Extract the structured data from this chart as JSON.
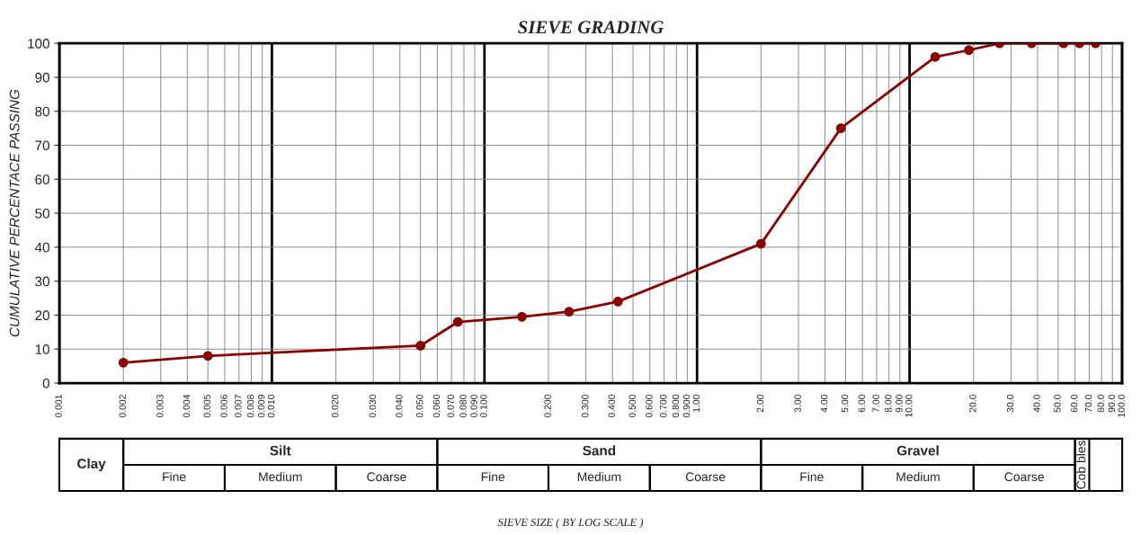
{
  "chart_data": {
    "type": "line",
    "title": "SIEVE GRADING",
    "ylabel": "CUMULATIVE PERCENTACE PASSING",
    "log": "x",
    "grid": true,
    "marker": "circle",
    "line_style": "solid",
    "xlim": [
      0.001,
      100
    ],
    "ylim": [
      0,
      100
    ],
    "xticks": [
      {
        "value": 0.001,
        "label": "0.001"
      },
      {
        "value": 0.002,
        "label": "0.002"
      },
      {
        "value": 0.003,
        "label": "0.003"
      },
      {
        "value": 0.004,
        "label": "0.004"
      },
      {
        "value": 0.005,
        "label": "0.005"
      },
      {
        "value": 0.006,
        "label": "0.006"
      },
      {
        "value": 0.007,
        "label": "0.007"
      },
      {
        "value": 0.008,
        "label": "0.008"
      },
      {
        "value": 0.009,
        "label": "0.009"
      },
      {
        "value": 0.01,
        "label": "0.010"
      },
      {
        "value": 0.02,
        "label": "0.020"
      },
      {
        "value": 0.03,
        "label": "0.030"
      },
      {
        "value": 0.04,
        "label": "0.040"
      },
      {
        "value": 0.05,
        "label": "0.050"
      },
      {
        "value": 0.06,
        "label": "0.060"
      },
      {
        "value": 0.07,
        "label": "0.070"
      },
      {
        "value": 0.08,
        "label": "0.080"
      },
      {
        "value": 0.09,
        "label": "0.090"
      },
      {
        "value": 0.1,
        "label": "0.100"
      },
      {
        "value": 0.2,
        "label": "0.200"
      },
      {
        "value": 0.3,
        "label": "0.300"
      },
      {
        "value": 0.4,
        "label": "0.400"
      },
      {
        "value": 0.5,
        "label": "0.500"
      },
      {
        "value": 0.6,
        "label": "0.600"
      },
      {
        "value": 0.7,
        "label": "0.700"
      },
      {
        "value": 0.8,
        "label": "0.800"
      },
      {
        "value": 0.9,
        "label": "0.900"
      },
      {
        "value": 1,
        "label": "1.00"
      },
      {
        "value": 2,
        "label": "2.00"
      },
      {
        "value": 3,
        "label": "3.00"
      },
      {
        "value": 4,
        "label": "4.00"
      },
      {
        "value": 5,
        "label": "5.00"
      },
      {
        "value": 6,
        "label": "6.00"
      },
      {
        "value": 7,
        "label": "7.00"
      },
      {
        "value": 8,
        "label": "8.00"
      },
      {
        "value": 9,
        "label": "9.00"
      },
      {
        "value": 10,
        "label": "10.00"
      },
      {
        "value": 20,
        "label": "20.0"
      },
      {
        "value": 30,
        "label": "30.0"
      },
      {
        "value": 40,
        "label": "40.0"
      },
      {
        "value": 50,
        "label": "50.0"
      },
      {
        "value": 60,
        "label": "60.0"
      },
      {
        "value": 70,
        "label": "70.0"
      },
      {
        "value": 80,
        "label": "80.0"
      },
      {
        "value": 90,
        "label": "90.0"
      },
      {
        "value": 100,
        "label": "100.0"
      }
    ],
    "yticks": [
      0,
      10,
      20,
      30,
      40,
      50,
      60,
      70,
      80,
      90,
      100
    ],
    "series": [
      {
        "color": "#8b0000",
        "x": [
          0.002,
          0.005,
          0.05,
          0.075,
          0.15,
          0.25,
          0.425,
          2,
          4.75,
          13.2,
          19,
          26.5,
          37.5,
          53,
          63,
          75
        ],
        "values": [
          6,
          8,
          11,
          18,
          19.5,
          21,
          24,
          41,
          75,
          96,
          98,
          100,
          100,
          100,
          100,
          100
        ]
      }
    ],
    "annotations": [
      "Clay",
      "Silt",
      "Fine",
      "Medium",
      "Coarse",
      "Sand",
      "Fine",
      "Medium",
      "Coarse",
      "Gravel",
      "Fine",
      "Medium",
      "Coarse",
      "Cob bles",
      "SIEVE SIZE ( BY LOG SCALE )"
    ]
  }
}
